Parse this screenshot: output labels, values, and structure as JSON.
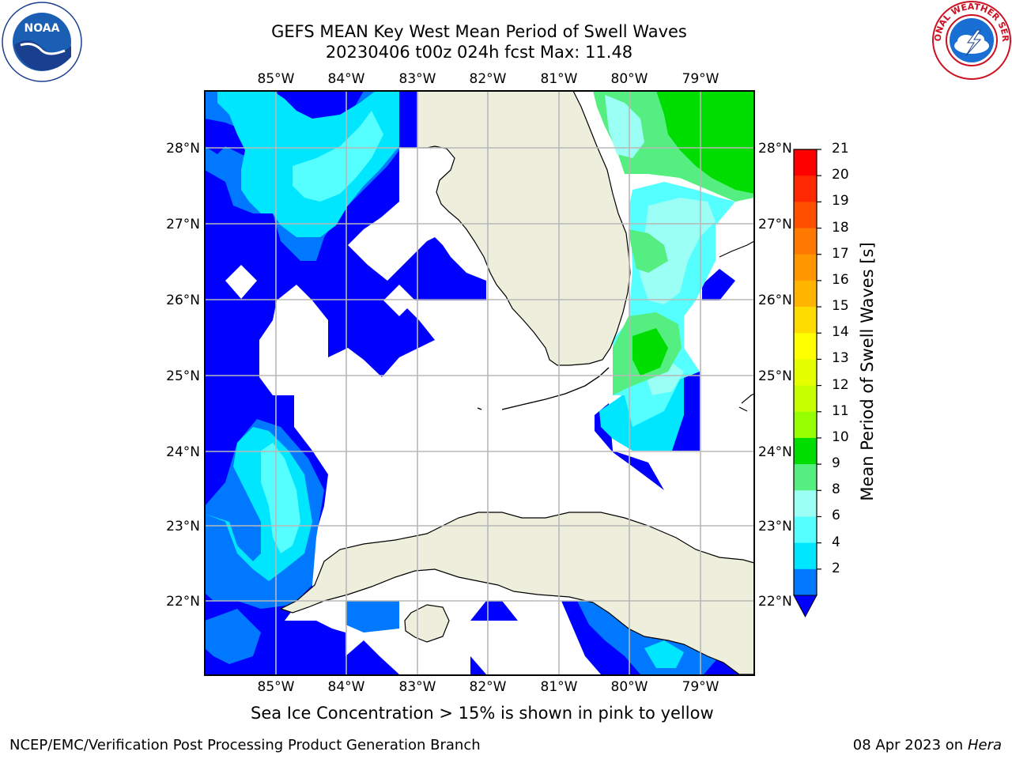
{
  "title": {
    "line1": "GEFS MEAN Key West Mean Period of Swell Waves",
    "line2": "20230406 t00z 024h fcst   Max: 11.48"
  },
  "map": {
    "lon_labels": [
      "85°W",
      "84°W",
      "83°W",
      "82°W",
      "81°W",
      "80°W",
      "79°W"
    ],
    "lat_labels": [
      "28°N",
      "27°N",
      "26°N",
      "25°N",
      "24°N",
      "23°N",
      "22°N"
    ],
    "colors": {
      "land": "#eeeedd",
      "grid": "#b8b8b8",
      "band_2_4": "#0000ff",
      "band_4_6": "#0078ff",
      "band_6_8": "#00e6ff",
      "band_8_9": "#55ffff",
      "band_9_10": "#9bfff5",
      "band_10_11": "#55ee80",
      "band_11_12": "#00dd00"
    }
  },
  "colorbar": {
    "label": "Mean Period of Swell Waves [s]",
    "ticks": [
      "21",
      "20",
      "19",
      "18",
      "17",
      "16",
      "15",
      "14",
      "13",
      "12",
      "11",
      "10",
      "9",
      "8",
      "6",
      "4",
      "2"
    ],
    "colors": [
      "#ff0000",
      "#ff2800",
      "#ff5000",
      "#ff7800",
      "#ff9600",
      "#ffb400",
      "#ffdc00",
      "#ffff00",
      "#e6ff00",
      "#c8ff00",
      "#96ff00",
      "#00dd00",
      "#55ee80",
      "#9bfff5",
      "#55ffff",
      "#00e6ff",
      "#0078ff",
      "#0000ff"
    ]
  },
  "note": "Sea Ice Concentration > 15% is shown in pink to yellow",
  "footer": {
    "left": "NCEP/EMC/Verification Post Processing Product Generation Branch",
    "date": "08 Apr 2023 on ",
    "host": "Hera"
  },
  "logos": {
    "noaa_text": "NOAA",
    "nws_text": "NATIONAL WEATHER SERVICE"
  }
}
